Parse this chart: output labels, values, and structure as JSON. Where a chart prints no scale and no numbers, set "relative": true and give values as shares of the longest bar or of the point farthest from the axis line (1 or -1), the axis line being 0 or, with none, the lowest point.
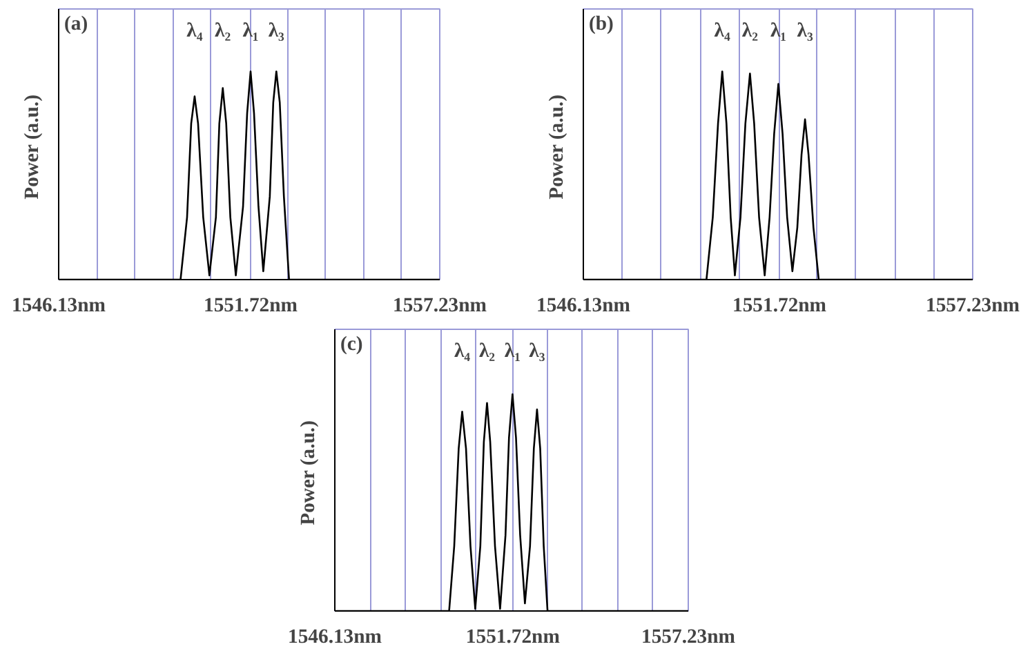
{
  "chart_data": [
    {
      "type": "line",
      "title": "(a)",
      "ylabel": "Power  (a.u.)",
      "relative": true,
      "tick_labels": "x",
      "grid": "x",
      "xlim": [
        1546.13,
        1557.23
      ],
      "xticks": [
        {
          "value": 1546.13,
          "label": "1546.13nm"
        },
        {
          "value": 1547.24,
          "label": null
        },
        {
          "value": 1548.35,
          "label": null
        },
        {
          "value": 1549.46,
          "label": null
        },
        {
          "value": 1550.57,
          "label": null
        },
        {
          "value": 1551.72,
          "label": "1551.72nm"
        },
        {
          "value": 1552.79,
          "label": null
        },
        {
          "value": 1553.9,
          "label": null
        },
        {
          "value": 1555.01,
          "label": null
        },
        {
          "value": 1556.12,
          "label": null
        },
        {
          "value": 1557.23,
          "label": "1557.23nm"
        }
      ],
      "x": [
        1546.13,
        1549.68,
        1549.87,
        1549.99,
        1550.09,
        1550.19,
        1550.34,
        1550.52,
        1550.71,
        1550.81,
        1550.91,
        1551.01,
        1551.13,
        1551.29,
        1551.5,
        1551.62,
        1551.72,
        1551.82,
        1551.95,
        1552.09,
        1552.28,
        1552.38,
        1552.47,
        1552.57,
        1552.69,
        1552.84,
        1557.23
      ],
      "series": [
        {
          "color": "#000000",
          "values": [
            0,
            0,
            0.3,
            0.75,
            0.88,
            0.75,
            0.3,
            0.02,
            0.3,
            0.75,
            0.92,
            0.75,
            0.3,
            0.02,
            0.35,
            0.8,
            1.0,
            0.8,
            0.35,
            0.04,
            0.4,
            0.85,
            1.0,
            0.85,
            0.4,
            0,
            0
          ]
        }
      ],
      "annotations": [
        "λ₄",
        "λ₂",
        "λ₁",
        "λ₃"
      ]
    },
    {
      "type": "line",
      "title": "(b)",
      "ylabel": "Power  (a.u.)",
      "relative": true,
      "tick_labels": "x",
      "grid": "x",
      "xlim": [
        1546.13,
        1557.23
      ],
      "xticks": [
        {
          "value": 1546.13,
          "label": "1546.13nm"
        },
        {
          "value": 1547.24,
          "label": null
        },
        {
          "value": 1548.35,
          "label": null
        },
        {
          "value": 1549.46,
          "label": null
        },
        {
          "value": 1550.57,
          "label": null
        },
        {
          "value": 1551.72,
          "label": "1551.72nm"
        },
        {
          "value": 1552.79,
          "label": null
        },
        {
          "value": 1553.9,
          "label": null
        },
        {
          "value": 1555.01,
          "label": null
        },
        {
          "value": 1556.12,
          "label": null
        },
        {
          "value": 1557.23,
          "label": "1557.23nm"
        }
      ],
      "x": [
        1546.13,
        1549.64,
        1549.82,
        1549.97,
        1550.09,
        1550.21,
        1550.33,
        1550.45,
        1550.61,
        1550.75,
        1550.88,
        1551.0,
        1551.14,
        1551.3,
        1551.44,
        1551.57,
        1551.69,
        1551.81,
        1551.94,
        1552.09,
        1552.23,
        1552.35,
        1552.45,
        1552.55,
        1552.69,
        1552.84,
        1557.23
      ],
      "series": [
        {
          "color": "#000000",
          "values": [
            0,
            0,
            0.3,
            0.75,
            1.0,
            0.75,
            0.3,
            0.02,
            0.3,
            0.75,
            0.99,
            0.75,
            0.3,
            0.02,
            0.3,
            0.7,
            0.94,
            0.7,
            0.3,
            0.04,
            0.25,
            0.6,
            0.77,
            0.6,
            0.25,
            0,
            0
          ]
        }
      ],
      "annotations": [
        "λ₄",
        "λ₂",
        "λ₁",
        "λ₃"
      ]
    },
    {
      "type": "line",
      "title": "(c)",
      "ylabel": "Power  (a.u.)",
      "relative": true,
      "tick_labels": "x",
      "grid": "x",
      "xlim": [
        1546.13,
        1557.23
      ],
      "xticks": [
        {
          "value": 1546.13,
          "label": "1546.13nm"
        },
        {
          "value": 1547.24,
          "label": null
        },
        {
          "value": 1548.35,
          "label": null
        },
        {
          "value": 1549.46,
          "label": null
        },
        {
          "value": 1550.57,
          "label": null
        },
        {
          "value": 1551.72,
          "label": "1551.72nm"
        },
        {
          "value": 1552.79,
          "label": null
        },
        {
          "value": 1553.9,
          "label": null
        },
        {
          "value": 1555.01,
          "label": null
        },
        {
          "value": 1556.12,
          "label": null
        },
        {
          "value": 1557.23,
          "label": "1557.23nm"
        }
      ],
      "x": [
        1546.13,
        1549.72,
        1549.88,
        1550.02,
        1550.13,
        1550.25,
        1550.39,
        1550.54,
        1550.7,
        1550.81,
        1550.91,
        1551.01,
        1551.16,
        1551.32,
        1551.49,
        1551.6,
        1551.71,
        1551.82,
        1551.95,
        1552.1,
        1552.26,
        1552.38,
        1552.48,
        1552.58,
        1552.69,
        1552.81,
        1557.23
      ],
      "series": [
        {
          "color": "#000000",
          "values": [
            0,
            0,
            0.3,
            0.75,
            0.92,
            0.75,
            0.3,
            0.01,
            0.3,
            0.78,
            0.96,
            0.78,
            0.3,
            0.01,
            0.35,
            0.8,
            1.0,
            0.8,
            0.35,
            0.035,
            0.3,
            0.75,
            0.93,
            0.75,
            0.3,
            0,
            0
          ]
        }
      ],
      "annotations": [
        "λ₄",
        "λ₂",
        "λ₁",
        "λ₃"
      ]
    }
  ]
}
